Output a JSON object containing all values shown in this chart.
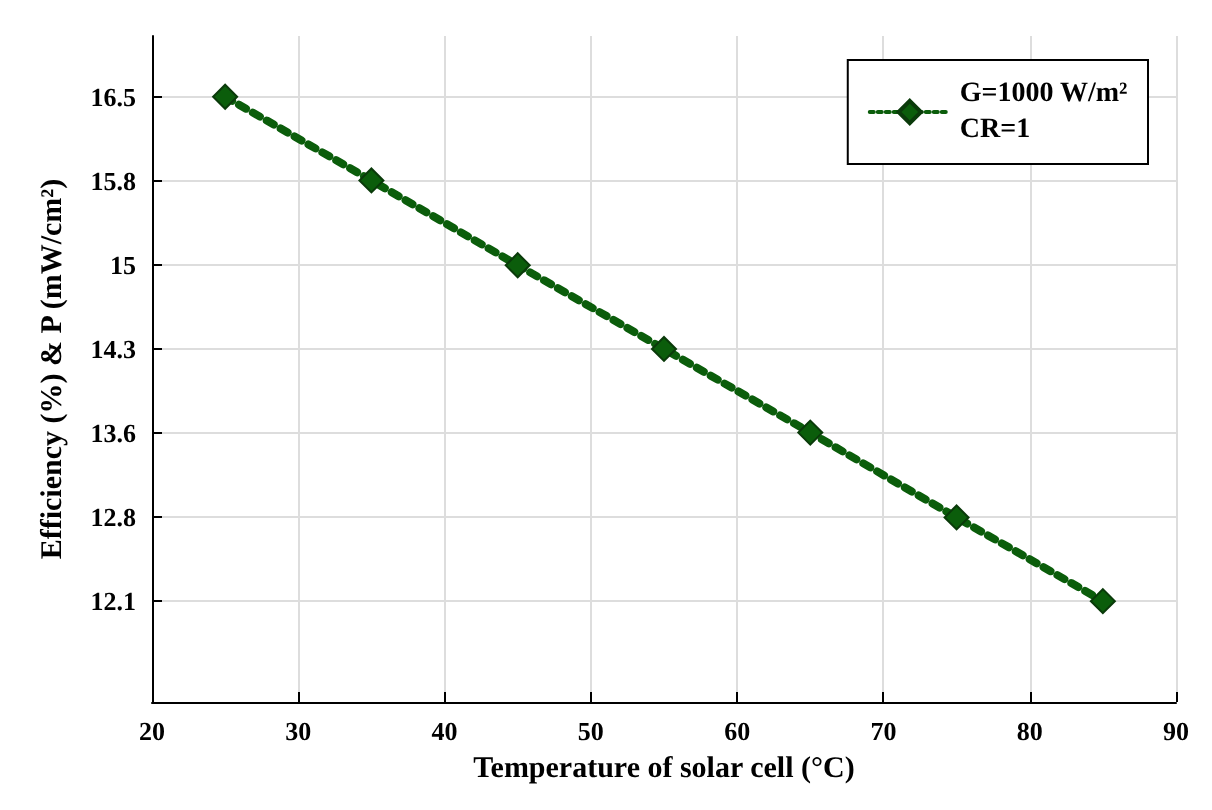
{
  "chart_data": {
    "type": "line",
    "xlabel": "Temperature of solar cell (°C)",
    "ylabel": "Efficiency (%) & P (mW/cm²)",
    "x": [
      25,
      35,
      45,
      55,
      65,
      75,
      85
    ],
    "series": [
      {
        "name": "G=1000 W/m²\nCR=1",
        "color": "#0b5d0b",
        "values": [
          16.5,
          15.77,
          15.03,
          14.3,
          13.57,
          12.83,
          12.1
        ]
      }
    ],
    "xlim": [
      20,
      90
    ],
    "xticks": [
      20,
      30,
      40,
      50,
      60,
      70,
      80,
      90
    ],
    "ylim": [
      11.22,
      17.03
    ],
    "yticks": [
      {
        "value": 12.1,
        "label": "12.1"
      },
      {
        "value": 12.833,
        "label": "12.8"
      },
      {
        "value": 13.567,
        "label": "13.6"
      },
      {
        "value": 14.3,
        "label": "14.3"
      },
      {
        "value": 15.033,
        "label": "15"
      },
      {
        "value": 15.767,
        "label": "15.8"
      },
      {
        "value": 16.5,
        "label": "16.5"
      }
    ],
    "grid": true,
    "legend": "top right",
    "marker": "diamond",
    "line_style": "dotted"
  }
}
